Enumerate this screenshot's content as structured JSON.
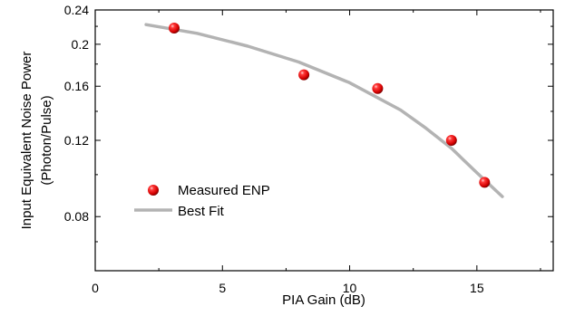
{
  "chart_data": {
    "type": "scatter",
    "xlabel": "PIA Gain (dB)",
    "ylabel_lines": [
      "Input Equivalent Noise Power",
      "(Photon/Pulse)"
    ],
    "xlim": [
      0,
      18
    ],
    "ylim": [
      0.06,
      0.24
    ],
    "y_scale": "log",
    "xticks": [
      0,
      5,
      10,
      15
    ],
    "xtick_labels": [
      "0",
      "5",
      "10",
      "15"
    ],
    "yticks": [
      0.08,
      0.12,
      0.16,
      0.2,
      0.24
    ],
    "ytick_labels": [
      "0.08",
      "0.12",
      "0.16",
      "0.2",
      "0.24"
    ],
    "grid": false,
    "legend_position": "bottom-left",
    "series": [
      {
        "name": "Measured ENP",
        "kind": "points",
        "color": "#e00000",
        "x": [
          3.1,
          8.2,
          11.1,
          14.0,
          15.3
        ],
        "y": [
          0.218,
          0.17,
          0.158,
          0.12,
          0.096
        ]
      },
      {
        "name": "Best Fit",
        "kind": "line",
        "color": "#b3b3b3",
        "x": [
          2.0,
          4.0,
          6.0,
          8.0,
          10.0,
          12.0,
          13.0,
          14.0,
          15.0,
          16.0
        ],
        "y": [
          0.222,
          0.212,
          0.198,
          0.182,
          0.163,
          0.141,
          0.128,
          0.115,
          0.101,
          0.089
        ]
      }
    ]
  }
}
